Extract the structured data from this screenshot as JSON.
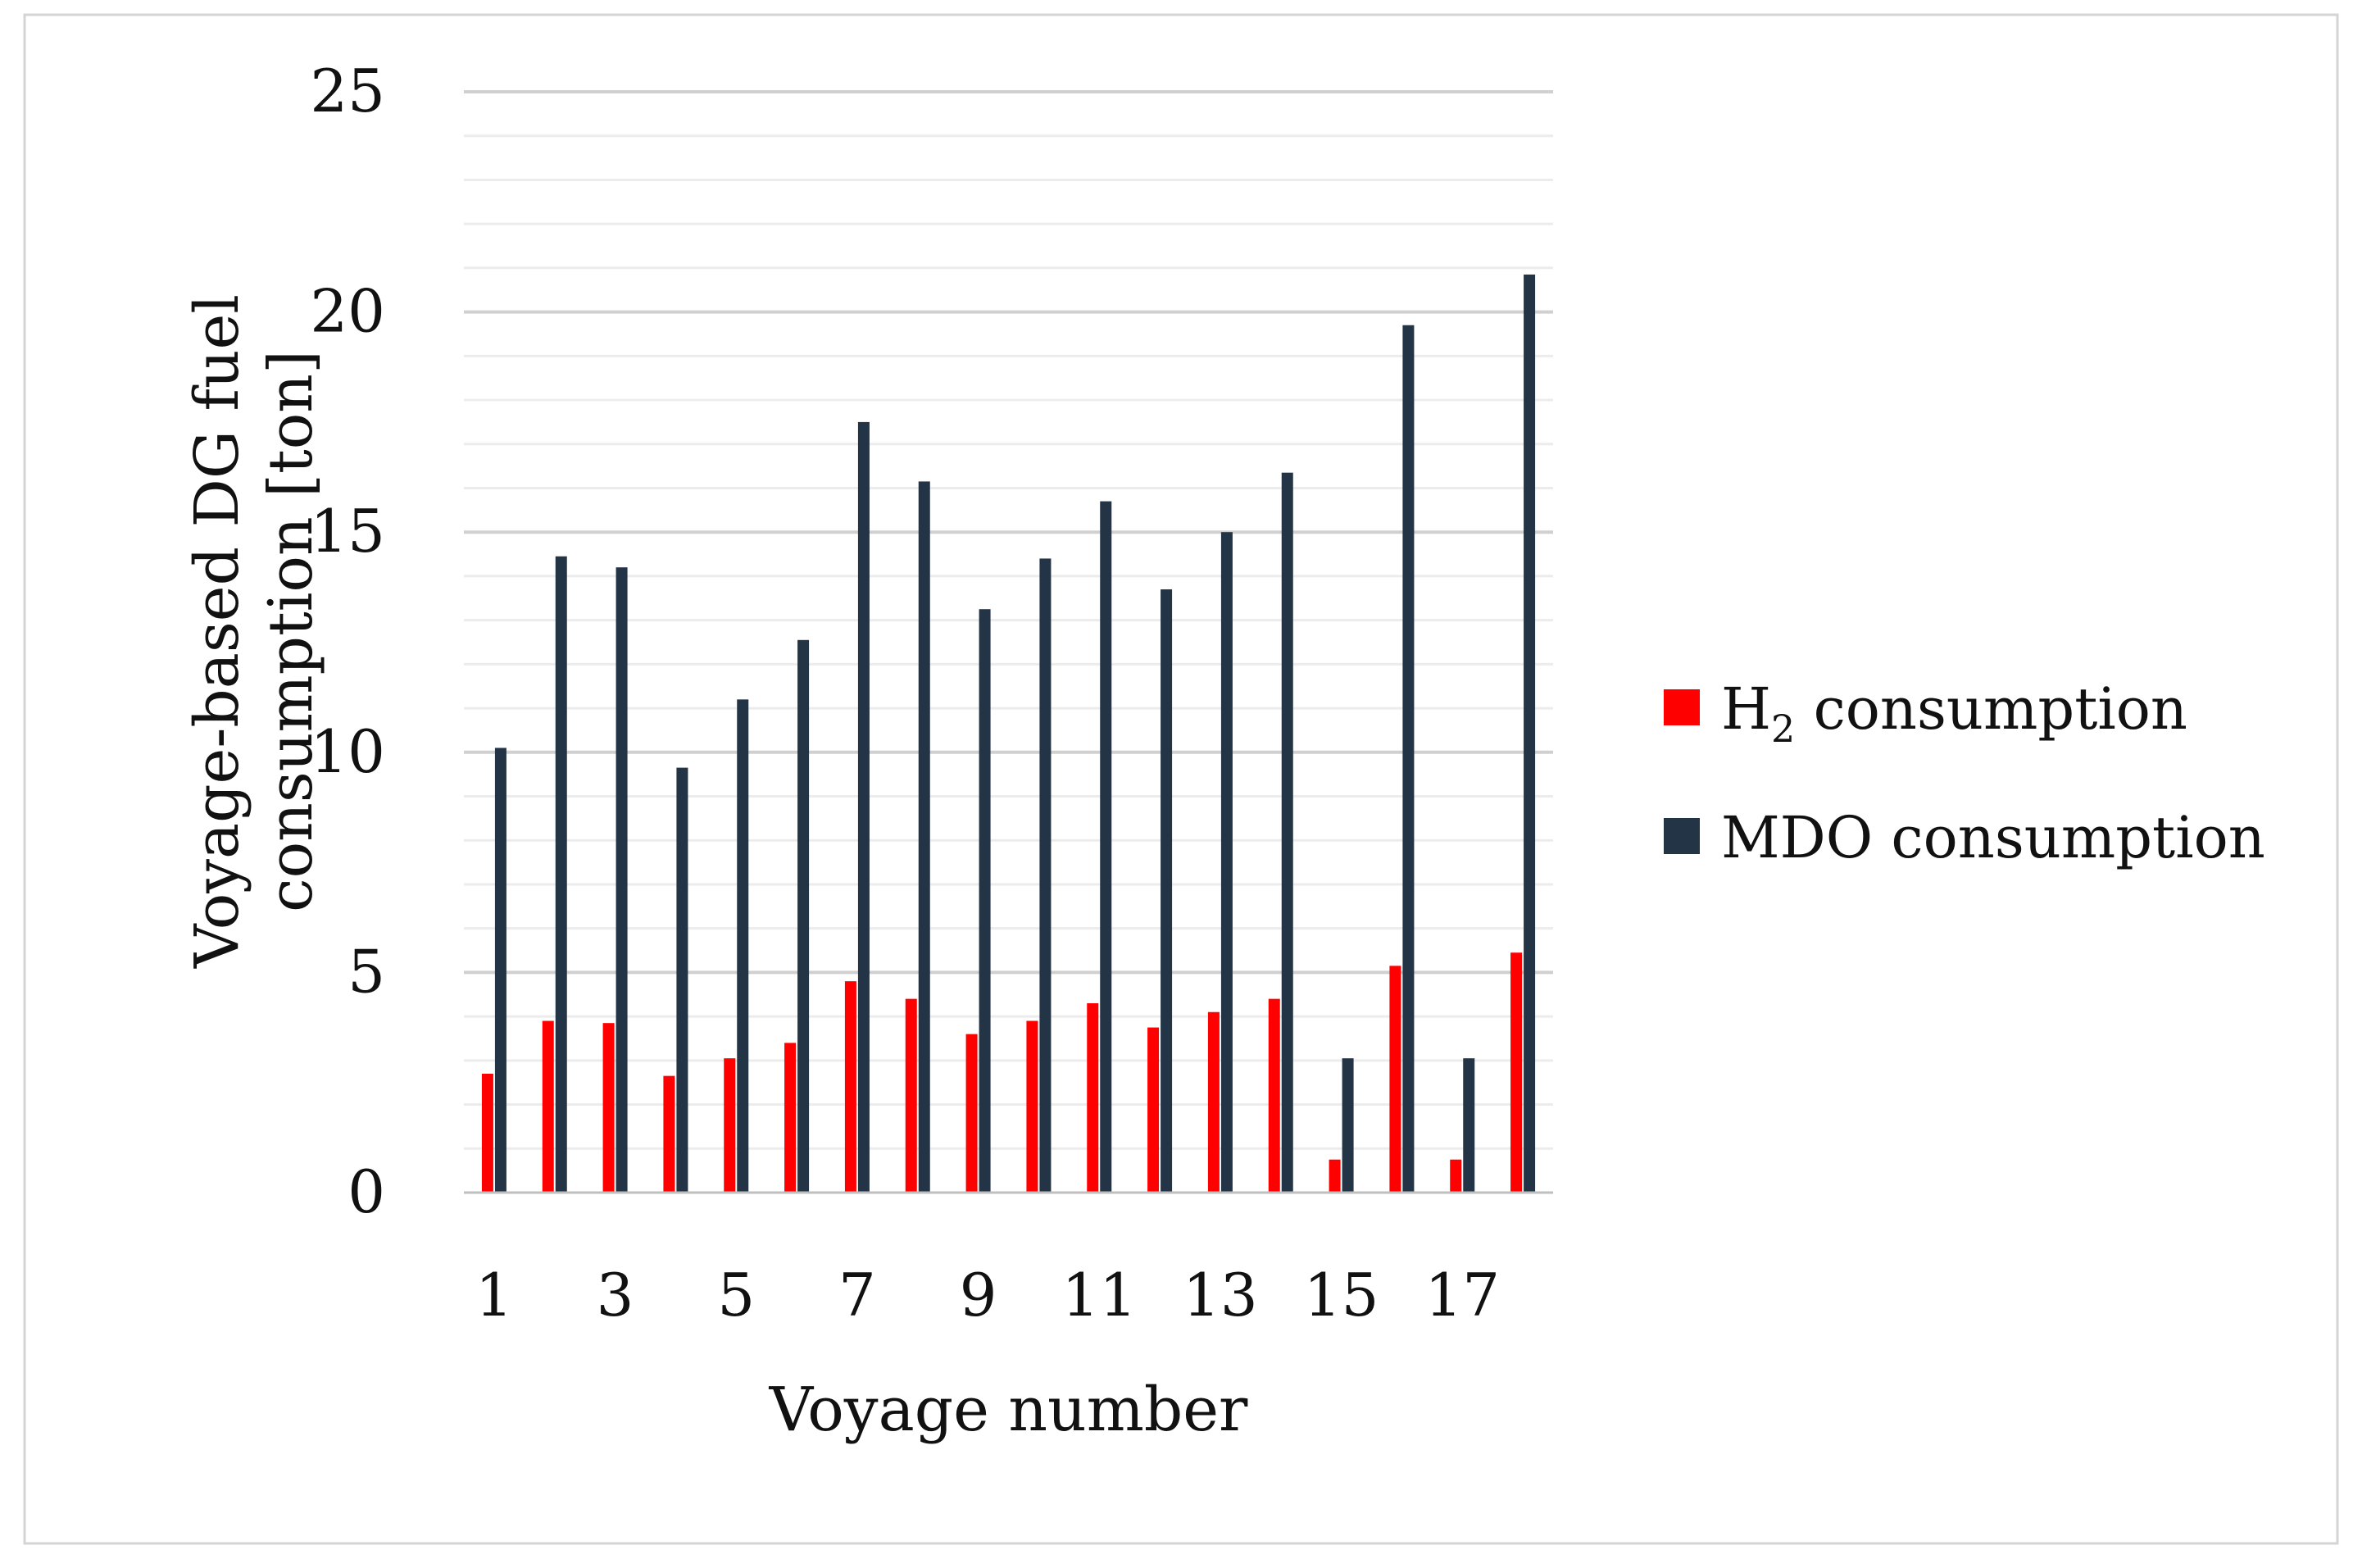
{
  "chart_data": {
    "type": "bar",
    "title": "",
    "xlabel": "Voyage number",
    "ylabel": "Voyage-based DG fuel consumption [ton]",
    "ylim": [
      0,
      25
    ],
    "y_ticks": [
      "0",
      "5",
      "10",
      "15",
      "20",
      "25"
    ],
    "x_tick_labels": [
      "1",
      "3",
      "5",
      "7",
      "9",
      "11",
      "13",
      "15",
      "17"
    ],
    "categories": [
      "1",
      "2",
      "3",
      "4",
      "5",
      "6",
      "7",
      "8",
      "9",
      "10",
      "11",
      "12",
      "13",
      "14",
      "15",
      "16",
      "17",
      "18"
    ],
    "grid": "horizontal major and minor",
    "legend_position": "right",
    "series": [
      {
        "name": "H2 consumption",
        "legend_main": "H",
        "legend_sub": "2",
        "legend_rest": " consumption",
        "color": "#ff0000",
        "values": [
          2.7,
          3.9,
          3.85,
          2.65,
          3.05,
          3.4,
          4.8,
          4.4,
          3.6,
          3.9,
          4.3,
          3.75,
          4.1,
          4.4,
          0.75,
          5.15,
          0.75,
          5.45
        ]
      },
      {
        "name": "MDO consumption",
        "legend_main": "MDO consumption",
        "color": "#243447",
        "values": [
          10.1,
          14.45,
          14.2,
          9.65,
          11.2,
          12.55,
          17.5,
          16.15,
          13.25,
          14.4,
          15.7,
          13.7,
          15.0,
          16.35,
          3.05,
          19.7,
          3.05,
          20.85
        ]
      }
    ]
  }
}
